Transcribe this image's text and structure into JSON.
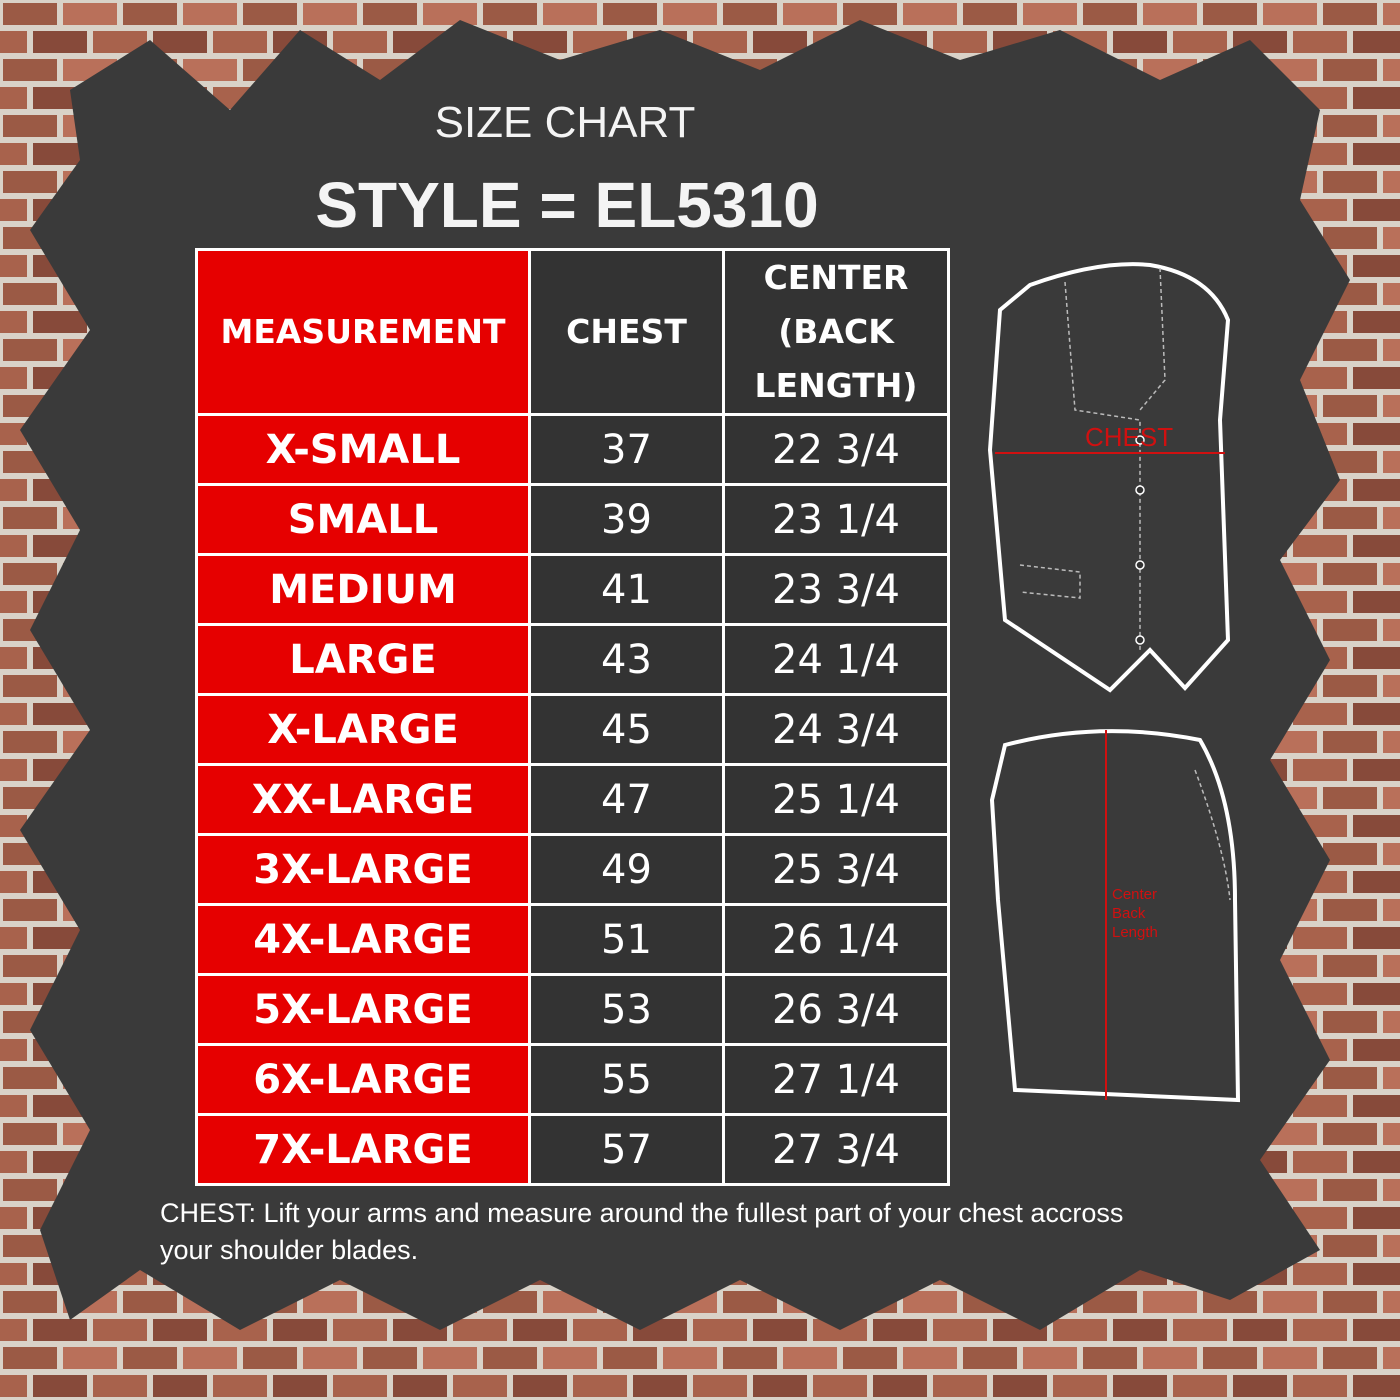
{
  "header": {
    "subtitle": "SIZE CHART",
    "title": "STYLE = EL5310"
  },
  "table": {
    "headers": [
      "MEASUREMENT",
      "CHEST",
      "CENTER (BACK LENGTH)"
    ],
    "rows": [
      [
        "X-SMALL",
        "37",
        "22 3/4"
      ],
      [
        "SMALL",
        "39",
        "23 1/4"
      ],
      [
        "MEDIUM",
        "41",
        "23 3/4"
      ],
      [
        "LARGE",
        "43",
        "24 1/4"
      ],
      [
        "X-LARGE",
        "45",
        "24 3/4"
      ],
      [
        "XX-LARGE",
        "47",
        "25 1/4"
      ],
      [
        "3X-LARGE",
        "49",
        "25 3/4"
      ],
      [
        "4X-LARGE",
        "51",
        "26 1/4"
      ],
      [
        "5X-LARGE",
        "53",
        "26 3/4"
      ],
      [
        "6X-LARGE",
        "55",
        "27 1/4"
      ],
      [
        "7X-LARGE",
        "57",
        "27 3/4"
      ]
    ]
  },
  "diagram": {
    "front_label": "CHEST",
    "back_label": "Center Back Length"
  },
  "note": "CHEST: Lift your arms and measure around the fullest part of your chest accross your shoulder blades."
}
